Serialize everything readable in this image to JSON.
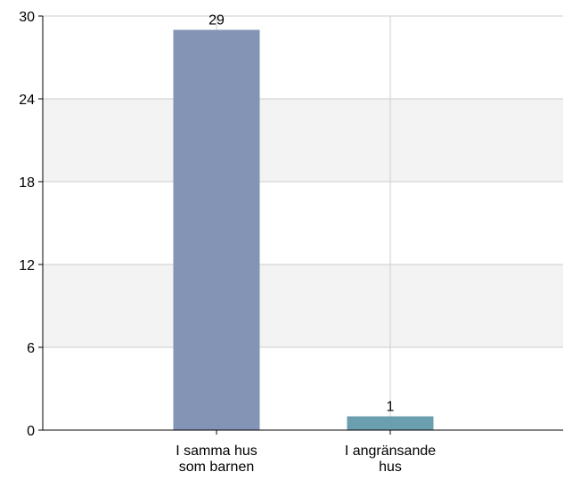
{
  "chart_data": {
    "type": "bar",
    "categories": [
      [
        "I samma hus",
        "som barnen"
      ],
      [
        "I angränsande",
        "hus"
      ]
    ],
    "values": [
      29,
      1
    ],
    "data_labels": [
      "29",
      "1"
    ],
    "ylim": [
      0,
      30
    ],
    "yticks": [
      0,
      6,
      12,
      18,
      24,
      30
    ],
    "ytick_labels": [
      "0",
      "6",
      "12",
      "18",
      "24",
      "30"
    ],
    "grid": true,
    "legend": "none",
    "colors": {
      "bars": [
        "#8494b4",
        "#6b9fb0"
      ],
      "band": "#f3f3f3",
      "gridline": "#cccccc",
      "axis": "#000000"
    }
  }
}
